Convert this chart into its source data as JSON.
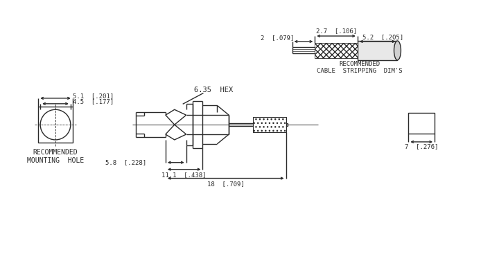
{
  "bg_color": "#ffffff",
  "line_color": "#2a2a2a",
  "annotations": {
    "hex_label": "6.35  HEX",
    "rec_cable": "RECOMMENDED\nCABLE  STRIPPING  DIM'S",
    "rec_mount": "RECOMMENDED\nMOUNTING  HOLE",
    "dim_27": "2.7  [.106]",
    "dim_52": "5.2  [.205]",
    "dim_2": "2  [.079]",
    "dim_51": "5.1  [.201]",
    "dim_45": "4.5  [.177]",
    "dim_58": "5.8  [.228]",
    "dim_111": "11.1  [.438]",
    "dim_18": "18  [.709]",
    "dim_7": "7  [.276]"
  }
}
